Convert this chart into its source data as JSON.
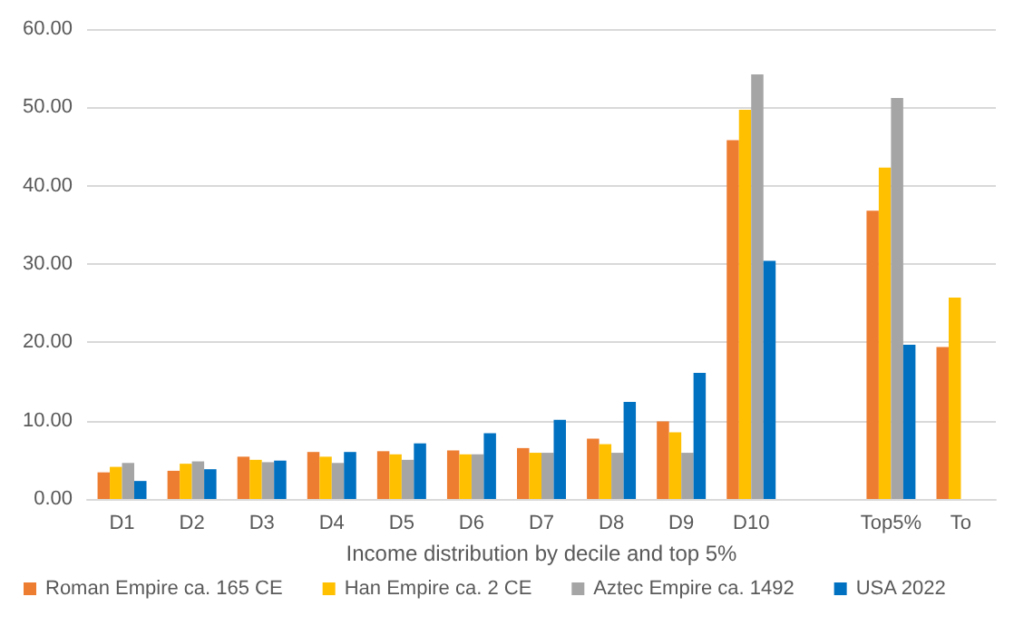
{
  "chart_data": {
    "type": "bar",
    "xlabel": "Income distribution by decile and top 5%",
    "categories": [
      "D1",
      "D2",
      "D3",
      "D4",
      "D5",
      "D6",
      "D7",
      "D8",
      "D9",
      "D10",
      null,
      "Top5%",
      "To"
    ],
    "series": [
      {
        "name": "Roman Empire ca. 165 CE",
        "color": "#ed7d31",
        "values": [
          3.4,
          3.6,
          5.4,
          6.0,
          6.1,
          6.2,
          6.5,
          7.7,
          9.9,
          45.8,
          null,
          36.8,
          19.4
        ]
      },
      {
        "name": "Han Empire ca. 2 CE",
        "color": "#ffc000",
        "values": [
          4.1,
          4.5,
          5.0,
          5.4,
          5.7,
          5.7,
          5.9,
          7.0,
          8.5,
          49.7,
          null,
          42.3,
          25.7
        ]
      },
      {
        "name": "Aztec Empire ca. 1492",
        "color": "#a5a5a5",
        "values": [
          4.6,
          4.8,
          4.7,
          4.6,
          5.0,
          5.7,
          5.9,
          5.9,
          5.9,
          54.2,
          null,
          51.2,
          null
        ]
      },
      {
        "name": "USA 2022",
        "color": "#0070c0",
        "values": [
          2.3,
          3.8,
          4.9,
          6.0,
          7.1,
          8.4,
          10.1,
          12.4,
          16.1,
          30.4,
          null,
          19.7,
          null
        ]
      }
    ],
    "ylim": [
      0,
      60
    ],
    "yticks": [
      {
        "value": 0,
        "label": "0.00"
      },
      {
        "value": 10,
        "label": "10.00"
      },
      {
        "value": 20,
        "label": "20.00"
      },
      {
        "value": 30,
        "label": "30.00"
      },
      {
        "value": 40,
        "label": "40.00"
      },
      {
        "value": 50,
        "label": "50.00"
      },
      {
        "value": 60,
        "label": "60.00"
      }
    ],
    "grid": "y",
    "legend": "bottom"
  }
}
